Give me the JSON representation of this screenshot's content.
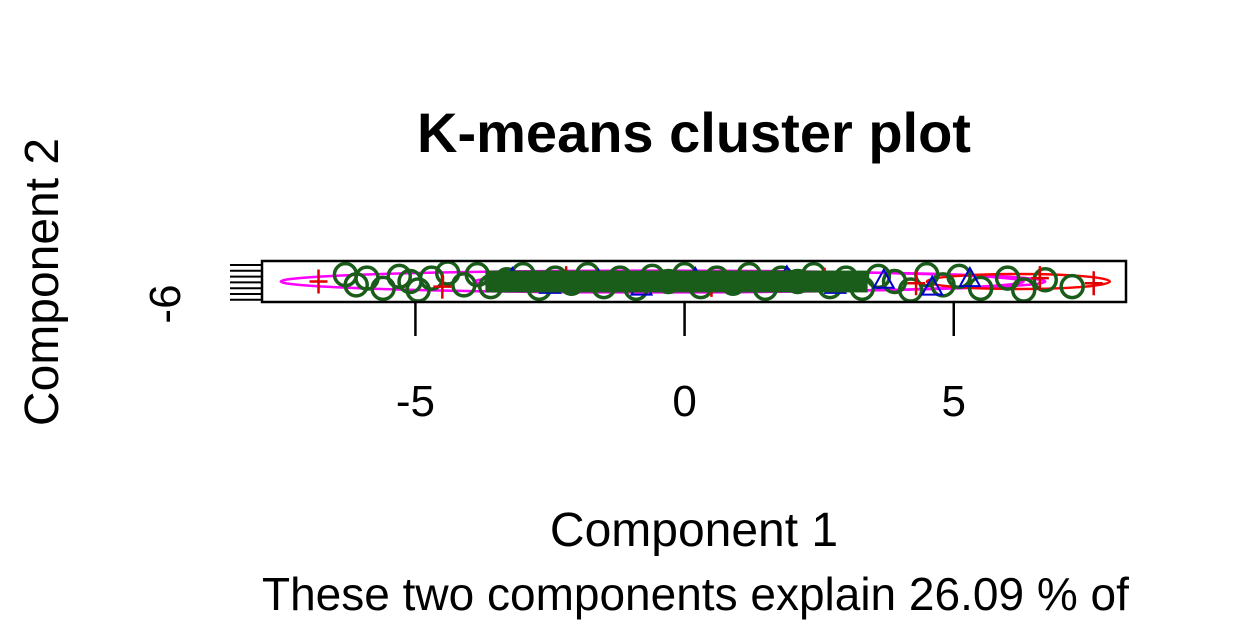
{
  "chart_data": {
    "type": "scatter",
    "title": "K-means cluster plot",
    "xlabel": "Component 1",
    "ylabel": "Component 2",
    "subtitle": "These two components explain 26.09 % of",
    "xlim": [
      -7.85,
      8.2
    ],
    "x_ticks": [
      -5,
      0,
      5
    ],
    "x_tick_labels": [
      "-5",
      "0",
      "5"
    ],
    "y_tick_labels": [
      "-6"
    ],
    "grid": false,
    "legend": "none",
    "series": [
      {
        "color": "#1a5c1a",
        "points": [
          [
            -6.3,
            0.2
          ],
          [
            -6.1,
            -0.1
          ],
          [
            -5.9,
            0.1
          ],
          [
            -5.6,
            -0.2
          ],
          [
            -5.3,
            0.15
          ],
          [
            -5.1,
            0.0
          ],
          [
            -4.95,
            -0.25
          ],
          [
            -4.7,
            0.1
          ],
          [
            -4.4,
            0.25
          ],
          [
            -4.1,
            -0.1
          ],
          [
            -3.85,
            0.2
          ],
          [
            -3.6,
            -0.15
          ],
          [
            -3.3,
            0.05
          ],
          [
            -3.0,
            0.2
          ],
          [
            -2.7,
            -0.2
          ],
          [
            -2.4,
            0.1
          ],
          [
            -2.1,
            -0.05
          ],
          [
            -1.8,
            0.2
          ],
          [
            -1.5,
            -0.15
          ],
          [
            -1.2,
            0.1
          ],
          [
            -0.9,
            -0.2
          ],
          [
            -0.6,
            0.15
          ],
          [
            -0.3,
            0.0
          ],
          [
            0.0,
            0.2
          ],
          [
            0.3,
            -0.15
          ],
          [
            0.6,
            0.1
          ],
          [
            0.9,
            -0.05
          ],
          [
            1.2,
            0.2
          ],
          [
            1.5,
            -0.2
          ],
          [
            1.8,
            0.1
          ],
          [
            2.1,
            0.0
          ],
          [
            2.4,
            0.2
          ],
          [
            2.7,
            -0.15
          ],
          [
            3.0,
            0.1
          ],
          [
            3.3,
            -0.2
          ],
          [
            3.6,
            0.15
          ],
          [
            3.9,
            0.0
          ],
          [
            4.2,
            -0.25
          ],
          [
            4.5,
            0.2
          ],
          [
            4.8,
            -0.1
          ],
          [
            5.1,
            0.15
          ],
          [
            5.5,
            -0.2
          ],
          [
            6.0,
            0.1
          ],
          [
            6.3,
            -0.25
          ],
          [
            6.7,
            0.05
          ],
          [
            7.2,
            -0.15
          ]
        ]
      },
      {
        "color": "#0000cc",
        "points": [
          [
            -3.2,
            0.1
          ],
          [
            -2.5,
            -0.1
          ],
          [
            -1.6,
            0.05
          ],
          [
            -0.8,
            -0.15
          ],
          [
            0.2,
            0.1
          ],
          [
            1.0,
            -0.05
          ],
          [
            1.9,
            0.15
          ],
          [
            2.8,
            -0.1
          ],
          [
            3.7,
            0.05
          ],
          [
            4.6,
            -0.15
          ],
          [
            5.3,
            0.1
          ]
        ]
      },
      {
        "color": "#dd0000",
        "points": [
          [
            -6.8,
            0.0
          ],
          [
            -4.5,
            -0.15
          ],
          [
            -2.2,
            0.1
          ],
          [
            0.5,
            -0.1
          ],
          [
            2.6,
            0.05
          ],
          [
            4.3,
            -0.05
          ],
          [
            6.6,
            0.1
          ],
          [
            7.6,
            -0.05
          ]
        ]
      }
    ],
    "clusters": [
      {
        "color": "#ff00ff",
        "cx": -0.6,
        "cy": 0.0,
        "rx": 6.9,
        "ry": 0.32
      },
      {
        "color": "#ff00ff",
        "cx": 1.4,
        "cy": 0.0,
        "rx": 5.3,
        "ry": 0.28
      },
      {
        "color": "#ff0000",
        "cx": 6.2,
        "cy": 0.0,
        "rx": 1.7,
        "ry": 0.22
      }
    ]
  }
}
